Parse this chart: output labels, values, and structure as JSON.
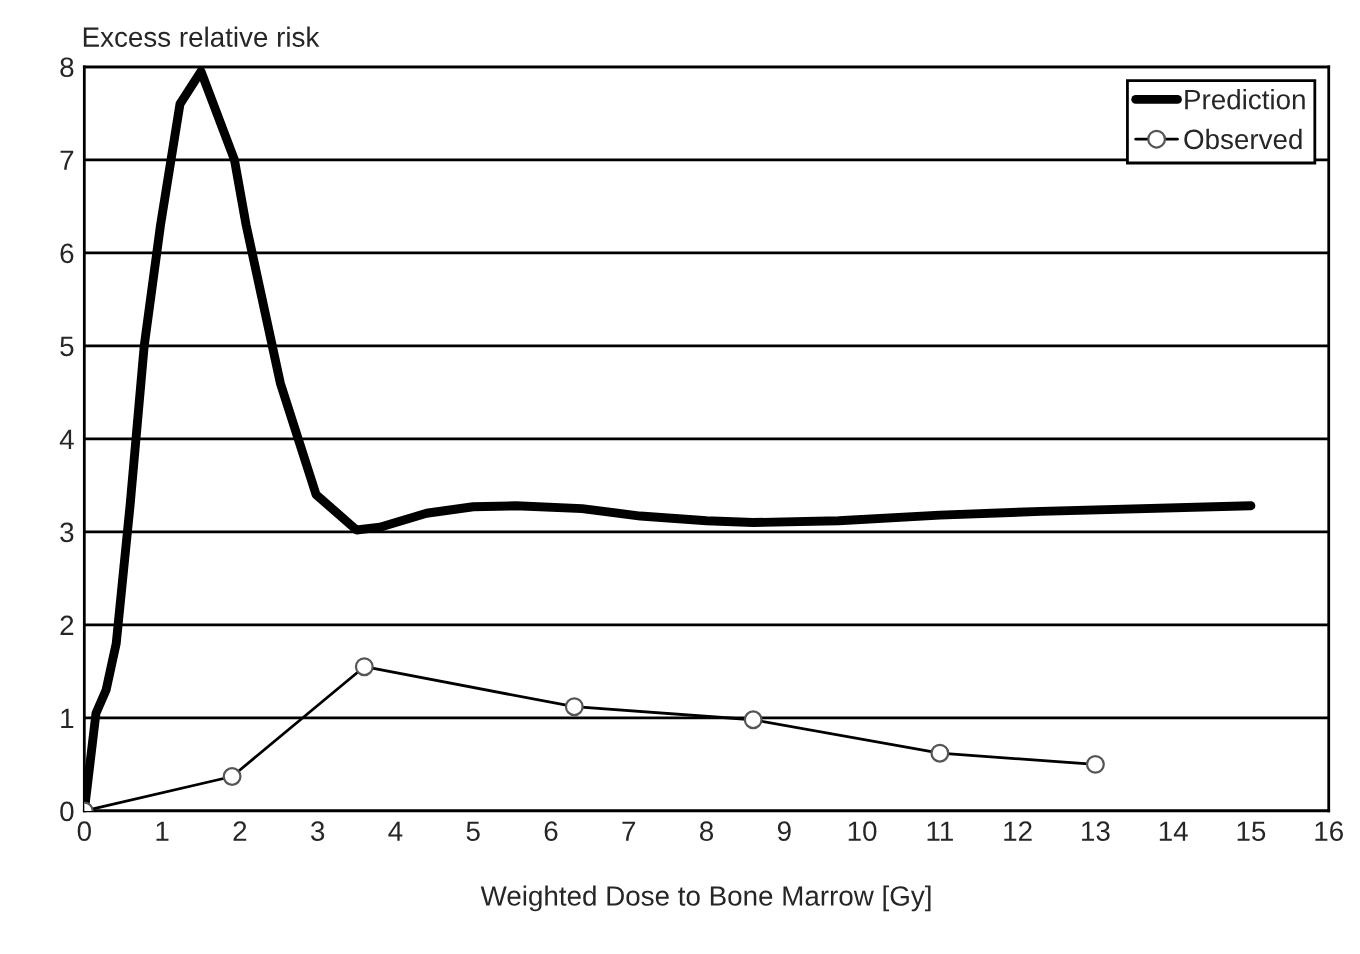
{
  "chart_data": {
    "type": "line",
    "ylabel": "Excess relative risk",
    "xlabel": "Weighted Dose to Bone Marrow [Gy]",
    "xlim": [
      0,
      16
    ],
    "xticks": [
      0,
      1,
      2,
      3,
      4,
      5,
      6,
      7,
      8,
      9,
      10,
      11,
      12,
      13,
      14,
      15,
      16
    ],
    "ylim": [
      0,
      8
    ],
    "yticks": [
      0,
      1,
      2,
      3,
      4,
      5,
      6,
      7,
      8
    ],
    "grid": "y",
    "legend": "top right",
    "series": [
      {
        "name": "Prediction",
        "color": "#000000",
        "marker": "none",
        "x": [
          0,
          0.15,
          0.28,
          0.41,
          0.59,
          0.77,
          0.98,
          1.23,
          1.5,
          1.93,
          2.08,
          2.52,
          2.98,
          3.5,
          3.8,
          4.4,
          5.0,
          5.55,
          6.4,
          7.15,
          8.0,
          8.6,
          9.7,
          11.0,
          12.3,
          15.0
        ],
        "values": [
          0,
          1.05,
          1.3,
          1.8,
          3.3,
          5.0,
          6.3,
          7.6,
          7.95,
          7.0,
          6.3,
          4.6,
          3.4,
          3.02,
          3.05,
          3.2,
          3.27,
          3.28,
          3.25,
          3.17,
          3.12,
          3.1,
          3.12,
          3.18,
          3.22,
          3.28
        ]
      },
      {
        "name": "Observed",
        "color": "#000000",
        "marker": "circle",
        "x": [
          0,
          1.9,
          3.6,
          6.3,
          8.6,
          11,
          13
        ],
        "values": [
          0,
          0.37,
          1.55,
          1.12,
          0.98,
          0.62,
          0.5
        ]
      }
    ]
  }
}
